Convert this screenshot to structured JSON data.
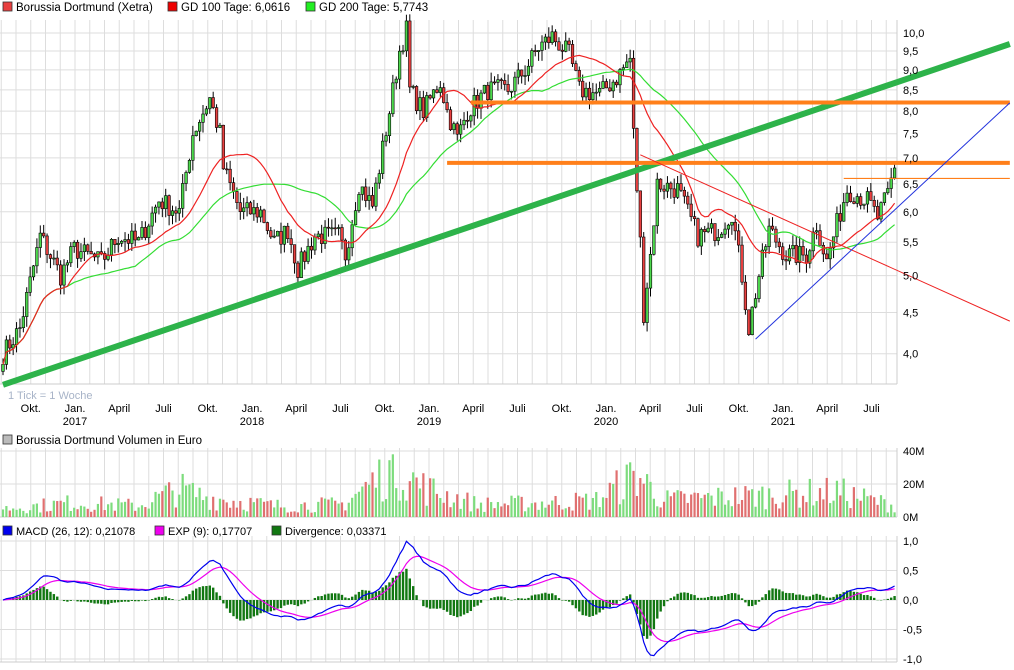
{
  "legend": {
    "price": "Borussia Dortmund (Xetra)",
    "gd100": "GD 100 Tage: 6,0616",
    "gd200": "GD 200 Tage: 5,7743",
    "volume": "Borussia Dortmund Volumen in Euro",
    "macd": "MACD (26, 12): 0,21078",
    "exp": "EXP (9): 0,17707",
    "divergence": "Divergence: 0,03371",
    "tick_note": "1 Tick = 1 Woche"
  },
  "colors": {
    "up": "#4cd84c",
    "down": "#e84040",
    "gd100": "#ee2222",
    "gd200": "#33dd33",
    "trend": "#2db34a",
    "orange": "#ff7f1a",
    "blue": "#2233dd",
    "macd": "#0000ee",
    "exp": "#ee00ee",
    "div": "#117711",
    "grid": "#dddddd"
  },
  "chart_data": [
    {
      "type": "candlestick",
      "title": "Borussia Dortmund (Xetra)",
      "interval": "weekly",
      "y_scale": "log",
      "ylim": [
        3.6,
        10.5
      ],
      "y_ticks": [
        "4,0",
        "4,5",
        "5,0",
        "5,5",
        "6,0",
        "6,5",
        "7,0",
        "7,5",
        "8,0",
        "8,5",
        "9,0",
        "9,5",
        "10,0"
      ],
      "y_tick_values": [
        4.0,
        4.5,
        5.0,
        5.5,
        6.0,
        6.5,
        7.0,
        7.5,
        8.0,
        8.5,
        9.0,
        9.5,
        10.0
      ],
      "x_ticks": [
        {
          "m": 2,
          "label": "Okt.",
          "year": ""
        },
        {
          "m": 5,
          "label": "Jan.",
          "year": "2017"
        },
        {
          "m": 8,
          "label": "April",
          "year": ""
        },
        {
          "m": 11,
          "label": "Juli",
          "year": ""
        },
        {
          "m": 14,
          "label": "Okt.",
          "year": ""
        },
        {
          "m": 17,
          "label": "Jan.",
          "year": "2018"
        },
        {
          "m": 20,
          "label": "April",
          "year": ""
        },
        {
          "m": 23,
          "label": "Juli",
          "year": ""
        },
        {
          "m": 26,
          "label": "Okt.",
          "year": ""
        },
        {
          "m": 29,
          "label": "Jan.",
          "year": "2019"
        },
        {
          "m": 32,
          "label": "April",
          "year": ""
        },
        {
          "m": 35,
          "label": "Juli",
          "year": ""
        },
        {
          "m": 38,
          "label": "Okt.",
          "year": ""
        },
        {
          "m": 41,
          "label": "Jan.",
          "year": "2020"
        },
        {
          "m": 44,
          "label": "April",
          "year": ""
        },
        {
          "m": 47,
          "label": "Juli",
          "year": ""
        },
        {
          "m": 50,
          "label": "Okt.",
          "year": ""
        },
        {
          "m": 53,
          "label": "Jan.",
          "year": "2021"
        },
        {
          "m": 56,
          "label": "April",
          "year": ""
        },
        {
          "m": 59,
          "label": "Juli",
          "year": ""
        }
      ],
      "close_keypoints_week_price": [
        [
          0,
          4.0
        ],
        [
          5,
          4.3
        ],
        [
          11,
          5.6
        ],
        [
          17,
          5.0
        ],
        [
          21,
          5.4
        ],
        [
          29,
          5.2
        ],
        [
          34,
          5.6
        ],
        [
          40,
          5.5
        ],
        [
          46,
          6.2
        ],
        [
          52,
          6.0
        ],
        [
          56,
          7.5
        ],
        [
          61,
          8.3
        ],
        [
          64,
          7.5
        ],
        [
          65,
          6.8
        ],
        [
          70,
          6.0
        ],
        [
          76,
          6.0
        ],
        [
          80,
          5.5
        ],
        [
          84,
          5.7
        ],
        [
          87,
          5.1
        ],
        [
          92,
          5.6
        ],
        [
          99,
          5.6
        ],
        [
          101,
          5.3
        ],
        [
          105,
          6.5
        ],
        [
          109,
          6.1
        ],
        [
          114,
          8.0
        ],
        [
          117,
          9.5
        ],
        [
          119,
          10.1
        ],
        [
          120,
          8.5
        ],
        [
          124,
          8.0
        ],
        [
          129,
          8.7
        ],
        [
          131,
          8.0
        ],
        [
          134,
          7.4
        ],
        [
          137,
          8.0
        ],
        [
          143,
          8.5
        ],
        [
          149,
          8.5
        ],
        [
          154,
          9.0
        ],
        [
          158,
          9.6
        ],
        [
          162,
          9.9
        ],
        [
          167,
          9.4
        ],
        [
          170,
          8.5
        ],
        [
          176,
          8.4
        ],
        [
          181,
          8.8
        ],
        [
          185,
          9.3
        ],
        [
          186,
          7.5
        ],
        [
          188,
          5.5
        ],
        [
          189,
          4.5
        ],
        [
          191,
          5.3
        ],
        [
          193,
          6.5
        ],
        [
          199,
          6.4
        ],
        [
          205,
          5.6
        ],
        [
          211,
          5.7
        ],
        [
          215,
          6.0
        ],
        [
          218,
          5.0
        ],
        [
          220,
          4.3
        ],
        [
          223,
          5.0
        ],
        [
          226,
          5.7
        ],
        [
          231,
          5.3
        ],
        [
          237,
          5.3
        ],
        [
          240,
          5.8
        ],
        [
          243,
          5.2
        ],
        [
          246,
          5.8
        ],
        [
          249,
          6.4
        ],
        [
          255,
          6.2
        ],
        [
          258,
          5.9
        ],
        [
          261,
          6.3
        ],
        [
          263,
          6.8
        ]
      ],
      "moving_averages": [
        {
          "name": "GD 100 Tage",
          "last": 6.0616
        },
        {
          "name": "GD 200 Tage",
          "last": 5.7743
        }
      ],
      "trendlines_week_price": [
        {
          "name": "long-term-support",
          "color": "trend",
          "from": [
            0,
            3.66
          ],
          "to": [
            297,
            9.69
          ]
        },
        {
          "name": "resistance-8.2",
          "color": "orange",
          "from": [
            138,
            8.2
          ],
          "to": [
            297,
            8.2
          ]
        },
        {
          "name": "resistance-6.9",
          "color": "orange",
          "from": [
            131,
            6.9
          ],
          "to": [
            297,
            6.9
          ]
        },
        {
          "name": "resistance-6.6",
          "color": "orange",
          "from": [
            248,
            6.6
          ],
          "to": [
            297,
            6.6
          ]
        },
        {
          "name": "downtrend",
          "color": "gd100",
          "from": [
            188,
            7.06
          ],
          "to": [
            297,
            4.39
          ]
        },
        {
          "name": "uptrend",
          "color": "blue",
          "from": [
            222,
            4.17
          ],
          "to": [
            297,
            8.19
          ]
        }
      ]
    },
    {
      "type": "bar",
      "title": "Borussia Dortmund Volumen in Euro",
      "y_ticks": [
        "40M",
        "20M",
        "0M"
      ],
      "ylim": [
        0,
        40
      ],
      "volume_keypoints_week_millions": [
        [
          0,
          6
        ],
        [
          20,
          10
        ],
        [
          40,
          8
        ],
        [
          52,
          20
        ],
        [
          60,
          14
        ],
        [
          80,
          8
        ],
        [
          100,
          9
        ],
        [
          115,
          35
        ],
        [
          125,
          20
        ],
        [
          140,
          9
        ],
        [
          160,
          10
        ],
        [
          175,
          12
        ],
        [
          187,
          30
        ],
        [
          195,
          12
        ],
        [
          220,
          15
        ],
        [
          246,
          18
        ],
        [
          263,
          8
        ]
      ]
    },
    {
      "type": "line",
      "title": "MACD",
      "y_ticks": [
        "1,0",
        "0,5",
        "0,0",
        "-0,5",
        "-1,0"
      ],
      "y_tick_values": [
        1,
        0.5,
        0,
        -0.5,
        -1
      ],
      "ylim": [
        -1.0,
        1.05
      ],
      "series": [
        {
          "name": "MACD (26, 12)",
          "last": 0.21078
        },
        {
          "name": "EXP (9)",
          "last": 0.17707
        },
        {
          "name": "Divergence",
          "last": 0.03371
        }
      ]
    }
  ]
}
